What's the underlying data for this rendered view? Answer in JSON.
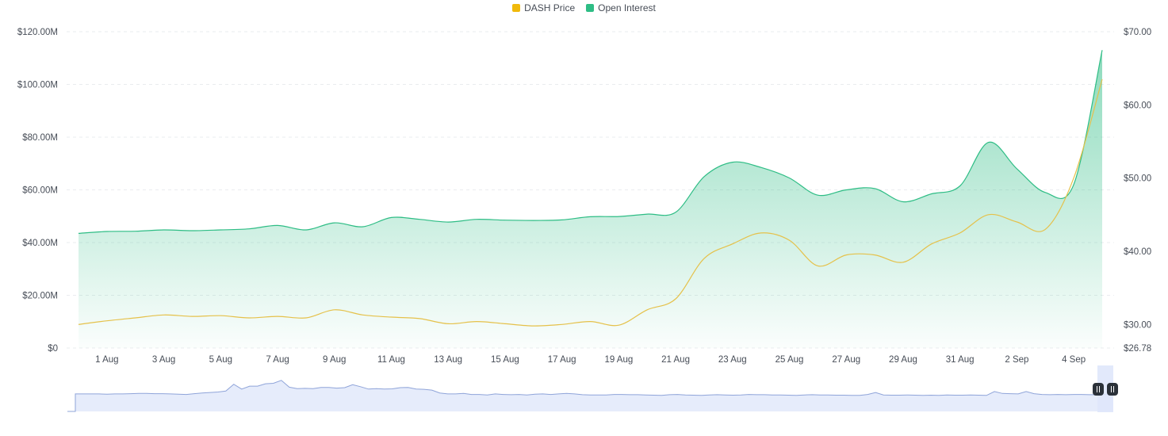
{
  "legend": {
    "price_label": "DASH Price",
    "oi_label": "Open Interest"
  },
  "colors": {
    "price": "#e5c14a",
    "price_legend": "#f0b90b",
    "oi": "#2ebd85",
    "oi_legend": "#2ebd85",
    "grid": "#eaecef",
    "axis_text": "#474d57",
    "navigator_line": "#8fa4d9",
    "navigator_fill": "#e6ecfb",
    "navigator_window": "#dfe7fb",
    "handle": "#2b3139"
  },
  "chart_data": {
    "type": "area",
    "x": [
      "31 Jul",
      "1 Aug",
      "2 Aug",
      "3 Aug",
      "4 Aug",
      "5 Aug",
      "6 Aug",
      "7 Aug",
      "8 Aug",
      "9 Aug",
      "10 Aug",
      "11 Aug",
      "12 Aug",
      "13 Aug",
      "14 Aug",
      "15 Aug",
      "16 Aug",
      "17 Aug",
      "18 Aug",
      "19 Aug",
      "20 Aug",
      "21 Aug",
      "22 Aug",
      "23 Aug",
      "24 Aug",
      "25 Aug",
      "26 Aug",
      "27 Aug",
      "28 Aug",
      "29 Aug",
      "30 Aug",
      "31 Aug",
      "1 Sep",
      "2 Sep",
      "3 Sep",
      "4 Sep",
      "5 Sep"
    ],
    "x_ticks": [
      "1 Aug",
      "3 Aug",
      "5 Aug",
      "7 Aug",
      "9 Aug",
      "11 Aug",
      "13 Aug",
      "15 Aug",
      "17 Aug",
      "19 Aug",
      "21 Aug",
      "23 Aug",
      "25 Aug",
      "27 Aug",
      "29 Aug",
      "31 Aug",
      "2 Sep",
      "4 Sep"
    ],
    "series": [
      {
        "name": "Open Interest",
        "axis": "left",
        "values": [
          43.5,
          44.2,
          44.3,
          44.8,
          44.5,
          44.8,
          45.2,
          46.5,
          44.8,
          47.5,
          46.0,
          49.5,
          48.8,
          47.8,
          48.8,
          48.5,
          48.4,
          48.6,
          49.8,
          49.9,
          50.8,
          51.5,
          65.0,
          70.5,
          68.5,
          64.5,
          58.0,
          60.0,
          60.5,
          55.5,
          58.5,
          61.5,
          78.0,
          68.0,
          59.0,
          62.0,
          113.0
        ]
      },
      {
        "name": "DASH Price",
        "axis": "right",
        "values": [
          30.0,
          30.5,
          30.9,
          31.3,
          31.1,
          31.2,
          30.9,
          31.1,
          30.9,
          32.0,
          31.3,
          31.0,
          30.8,
          30.1,
          30.4,
          30.1,
          29.8,
          30.0,
          30.4,
          29.9,
          32.0,
          33.5,
          39.0,
          41.0,
          42.5,
          41.5,
          38.0,
          39.5,
          39.5,
          38.5,
          41.0,
          42.5,
          45.0,
          44.0,
          43.0,
          50.0,
          63.5
        ]
      }
    ],
    "y_left": {
      "ticks": [
        "$0",
        "$20.00M",
        "$40.00M",
        "$60.00M",
        "$80.00M",
        "$100.00M",
        "$120.00M"
      ],
      "ylim": [
        0,
        120
      ],
      "unit": "M USD"
    },
    "y_right": {
      "ticks": [
        "$26.78",
        "$30.00",
        "$40.00",
        "$50.00",
        "$60.00",
        "$70.00"
      ],
      "ylim": [
        26.78,
        70
      ]
    },
    "grid": true,
    "legend_position": "top-center",
    "navigator": {
      "values": [
        0,
        36,
        36,
        36,
        36,
        35.5,
        36,
        36,
        36.5,
        37,
        37,
        36.5,
        36.5,
        36,
        35.5,
        35,
        36.5,
        38,
        39,
        40,
        42,
        56,
        46,
        52,
        52,
        57,
        58,
        64,
        50,
        47,
        47.5,
        47,
        49.5,
        49.5,
        48,
        49,
        55,
        51,
        46,
        47,
        46,
        46.5,
        49,
        49.5,
        46,
        45.5,
        44,
        38,
        36,
        36,
        37,
        35,
        35,
        34,
        36,
        35,
        34.5,
        35,
        34,
        35.5,
        36,
        35,
        36,
        37,
        36,
        34.5,
        34,
        34,
        34,
        35,
        35,
        34.5,
        34.5,
        34,
        33.5,
        33,
        34.5,
        35,
        34,
        33.5,
        33,
        34,
        34.5,
        34,
        33.5,
        34,
        35,
        34.5,
        34.5,
        34,
        34,
        33.5,
        33,
        34,
        34.5,
        34,
        34,
        33.5,
        33.5,
        33,
        33,
        35,
        39,
        34,
        33.5,
        33.5,
        34,
        33.5,
        33,
        33.5,
        33,
        34,
        33.5,
        33.5,
        34,
        33.5,
        33,
        41,
        37,
        36.5,
        36,
        41,
        36.5,
        35,
        34.5,
        35,
        34.5,
        35,
        35,
        34.5,
        34.5,
        35,
        35
      ],
      "ylim": [
        0,
        80
      ]
    }
  }
}
